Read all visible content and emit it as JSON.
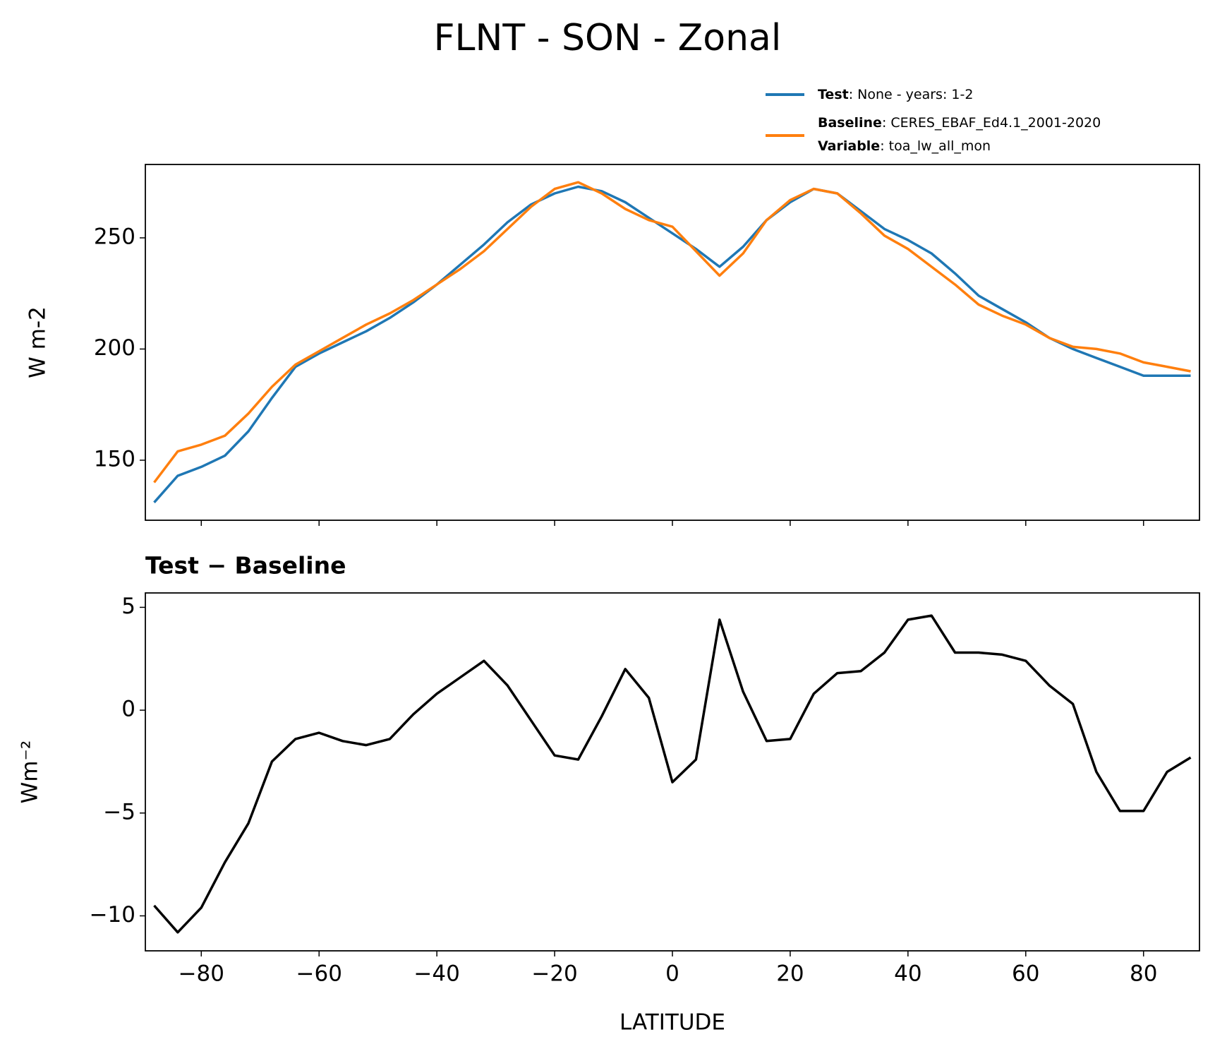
{
  "chart_data": [
    {
      "type": "line",
      "title": "FLNT - SON - Zonal",
      "ylabel": "W m-2",
      "x": [
        -88,
        -84,
        -80,
        -76,
        -72,
        -68,
        -64,
        -60,
        -56,
        -52,
        -48,
        -44,
        -40,
        -36,
        -32,
        -28,
        -24,
        -20,
        -16,
        -12,
        -8,
        -4,
        0,
        4,
        8,
        12,
        16,
        20,
        24,
        28,
        32,
        36,
        40,
        44,
        48,
        52,
        56,
        60,
        64,
        68,
        72,
        76,
        80,
        84,
        88
      ],
      "series": [
        {
          "name": "Test",
          "detail": ": None - years: 1-2",
          "color": "#1f77b4",
          "values": [
            131,
            143,
            147,
            152,
            163,
            178,
            192,
            198,
            203,
            208,
            214,
            221,
            229,
            238,
            247,
            257,
            265,
            270,
            273,
            271,
            266,
            259,
            252,
            245,
            237,
            246,
            258,
            266,
            272,
            270,
            262,
            254,
            249,
            243,
            234,
            224,
            218,
            212,
            205,
            200,
            196,
            192,
            188,
            188,
            188
          ]
        },
        {
          "name": "Baseline",
          "detail": ": CERES_EBAF_Ed4.1_2001-2020",
          "extra_name": "Variable",
          "extra_detail": ": toa_lw_all_mon",
          "color": "#ff7f0e",
          "values": [
            140,
            154,
            157,
            161,
            171,
            183,
            193,
            199,
            205,
            211,
            216,
            222,
            229,
            236,
            244,
            254,
            264,
            272,
            275,
            270,
            263,
            258,
            255,
            244,
            233,
            243,
            258,
            267,
            272,
            270,
            261,
            251,
            245,
            237,
            229,
            220,
            215,
            211,
            205,
            201,
            200,
            198,
            194,
            192,
            190
          ]
        }
      ],
      "xlim": [
        -89.5,
        89.5
      ],
      "ylim": [
        123,
        283
      ],
      "xticks": [
        -80,
        -60,
        -40,
        -20,
        0,
        20,
        40,
        60,
        80
      ],
      "x_tick_labels": false,
      "yticks": [
        150,
        200,
        250
      ]
    },
    {
      "type": "line",
      "title": "Test − Baseline",
      "ylabel": "Wm⁻²",
      "xlabel": "LATITUDE",
      "x": [
        -88,
        -84,
        -80,
        -76,
        -72,
        -68,
        -64,
        -60,
        -56,
        -52,
        -48,
        -44,
        -40,
        -36,
        -32,
        -28,
        -24,
        -20,
        -16,
        -12,
        -8,
        -4,
        0,
        4,
        8,
        12,
        16,
        20,
        24,
        28,
        32,
        36,
        40,
        44,
        48,
        52,
        56,
        60,
        64,
        68,
        72,
        76,
        80,
        84,
        88
      ],
      "series": [
        {
          "name": "Test − Baseline",
          "color": "#000000",
          "values": [
            -9.5,
            -10.8,
            -9.6,
            -7.4,
            -5.5,
            -2.5,
            -1.4,
            -1.1,
            -1.5,
            -1.7,
            -1.4,
            -0.2,
            0.8,
            1.6,
            2.4,
            1.2,
            -0.5,
            -2.2,
            -2.4,
            -0.3,
            2.0,
            0.6,
            -3.5,
            -2.4,
            4.4,
            0.9,
            -1.5,
            -1.4,
            0.8,
            1.8,
            1.9,
            2.8,
            4.4,
            4.6,
            2.8,
            2.8,
            2.7,
            2.4,
            1.2,
            0.3,
            -3.0,
            -4.9,
            -4.9,
            -3.0,
            -2.3
          ]
        }
      ],
      "xlim": [
        -89.5,
        89.5
      ],
      "ylim": [
        -11.7,
        5.7
      ],
      "xticks": [
        {
          "value": -80,
          "label": "−80"
        },
        {
          "value": -60,
          "label": "−60"
        },
        {
          "value": -40,
          "label": "−40"
        },
        {
          "value": -20,
          "label": "−20"
        },
        0,
        20,
        40,
        60,
        80
      ],
      "x_tick_labels": true,
      "yticks": [
        {
          "value": -10,
          "label": "−10"
        },
        {
          "value": -5,
          "label": "−5"
        },
        0,
        5
      ]
    }
  ]
}
